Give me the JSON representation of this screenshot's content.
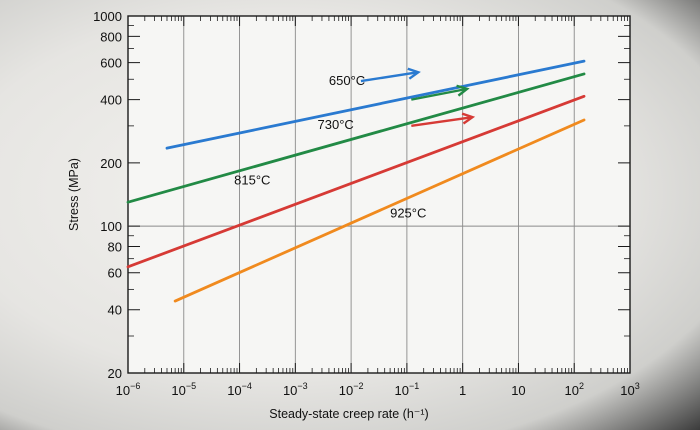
{
  "chart_data": {
    "type": "line",
    "title": "",
    "xlabel": "Steady-state creep rate (h⁻¹)",
    "ylabel": "Stress (MPa)",
    "x_scale": "log",
    "y_scale": "log",
    "xlim": [
      1e-06,
      1000
    ],
    "ylim": [
      20,
      1000
    ],
    "grid": true,
    "x_ticks": [
      {
        "value": 1e-06,
        "base": "10",
        "exp": "−6"
      },
      {
        "value": 1e-05,
        "base": "10",
        "exp": "−5"
      },
      {
        "value": 0.0001,
        "base": "10",
        "exp": "−4"
      },
      {
        "value": 0.001,
        "base": "10",
        "exp": "−3"
      },
      {
        "value": 0.01,
        "base": "10",
        "exp": "−2"
      },
      {
        "value": 0.1,
        "base": "10",
        "exp": "−1"
      },
      {
        "value": 1,
        "base": "1",
        "exp": ""
      },
      {
        "value": 10,
        "base": "10",
        "exp": ""
      },
      {
        "value": 100,
        "base": "10",
        "exp": "2"
      },
      {
        "value": 1000,
        "base": "10",
        "exp": "3"
      }
    ],
    "y_ticks": [
      {
        "value": 20,
        "label": "20"
      },
      {
        "value": 40,
        "label": "40"
      },
      {
        "value": 60,
        "label": "60"
      },
      {
        "value": 80,
        "label": "80"
      },
      {
        "value": 100,
        "label": "100"
      },
      {
        "value": 200,
        "label": "200"
      },
      {
        "value": 400,
        "label": "400"
      },
      {
        "value": 600,
        "label": "600"
      },
      {
        "value": 800,
        "label": "800"
      },
      {
        "value": 1000,
        "label": "1000"
      }
    ],
    "series": [
      {
        "name": "650°C",
        "color": "#2a7ad0",
        "x": [
          5e-06,
          150
        ],
        "y": [
          235,
          610
        ]
      },
      {
        "name": "730°C",
        "color": "#228a45",
        "x": [
          1e-06,
          150
        ],
        "y": [
          130,
          530
        ]
      },
      {
        "name": "815°C",
        "color": "#d63a35",
        "x": [
          1e-06,
          150
        ],
        "y": [
          64,
          415
        ]
      },
      {
        "name": "925°C",
        "color": "#f08a1e",
        "x": [
          7e-06,
          150
        ],
        "y": [
          44,
          320
        ]
      }
    ],
    "labels": [
      {
        "series": 0,
        "text": "650°C",
        "at": [
          0.004,
          470
        ],
        "pointer_to": [
          0.16,
          540
        ],
        "pointer_from": [
          0.015,
          490
        ]
      },
      {
        "series": 1,
        "text": "730°C",
        "at": [
          0.0025,
          290
        ],
        "pointer_to": [
          1.2,
          450
        ],
        "pointer_from": [
          0.12,
          400
        ]
      },
      {
        "series": 2,
        "text": "815°C",
        "at": [
          8e-05,
          158
        ],
        "pointer_to": [
          1.5,
          330
        ],
        "pointer_from": [
          0.12,
          300
        ]
      },
      {
        "series": 3,
        "text": "925°C",
        "at": [
          0.05,
          110
        ]
      }
    ],
    "ink_color": "#1a1a1a",
    "grid_color": "#8a8a8a"
  }
}
